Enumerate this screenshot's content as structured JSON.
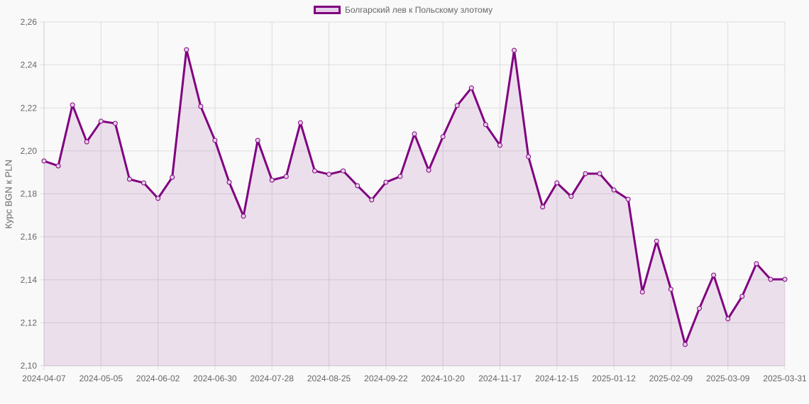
{
  "chart_data": {
    "type": "area",
    "title": "",
    "legend": [
      "Болгарский лев к Польскому злотому"
    ],
    "legend_position": "top",
    "xlabel": "",
    "ylabel": "Курс BGN к PLN",
    "ylim": [
      2.1,
      2.26
    ],
    "yticks": [
      "2,10",
      "2,12",
      "2,14",
      "2,16",
      "2,18",
      "2,20",
      "2,22",
      "2,24",
      "2,26"
    ],
    "xtick_labels": [
      "2024-04-07",
      "2024-05-05",
      "2024-06-02",
      "2024-06-30",
      "2024-07-28",
      "2024-08-25",
      "2024-09-22",
      "2024-10-20",
      "2024-11-17",
      "2024-12-15",
      "2025-01-12",
      "2025-02-09",
      "2025-03-09",
      "2025-03-31"
    ],
    "grid": true,
    "colors": {
      "line": "#800080",
      "fill": "rgba(128,0,128,0.1)"
    },
    "series": [
      {
        "name": "Болгарский лев к Польскому злотому",
        "values": [
          2.1953,
          2.193,
          2.2214,
          2.2042,
          2.2138,
          2.2128,
          2.1868,
          2.1851,
          2.1779,
          2.1877,
          2.2471,
          2.2207,
          2.2049,
          2.1854,
          2.1696,
          2.2049,
          2.1864,
          2.1881,
          2.2131,
          2.1907,
          2.1891,
          2.1907,
          2.1838,
          2.1772,
          2.1854,
          2.1881,
          2.2079,
          2.191,
          2.2066,
          2.2211,
          2.2293,
          2.2122,
          2.2026,
          2.2468,
          2.1973,
          2.1739,
          2.1851,
          2.1788,
          2.1894,
          2.1894,
          2.1818,
          2.1775,
          2.1343,
          2.158,
          2.1356,
          2.1099,
          2.1267,
          2.1422,
          2.1218,
          2.1323,
          2.1475,
          2.1402,
          2.1402
        ]
      }
    ]
  }
}
